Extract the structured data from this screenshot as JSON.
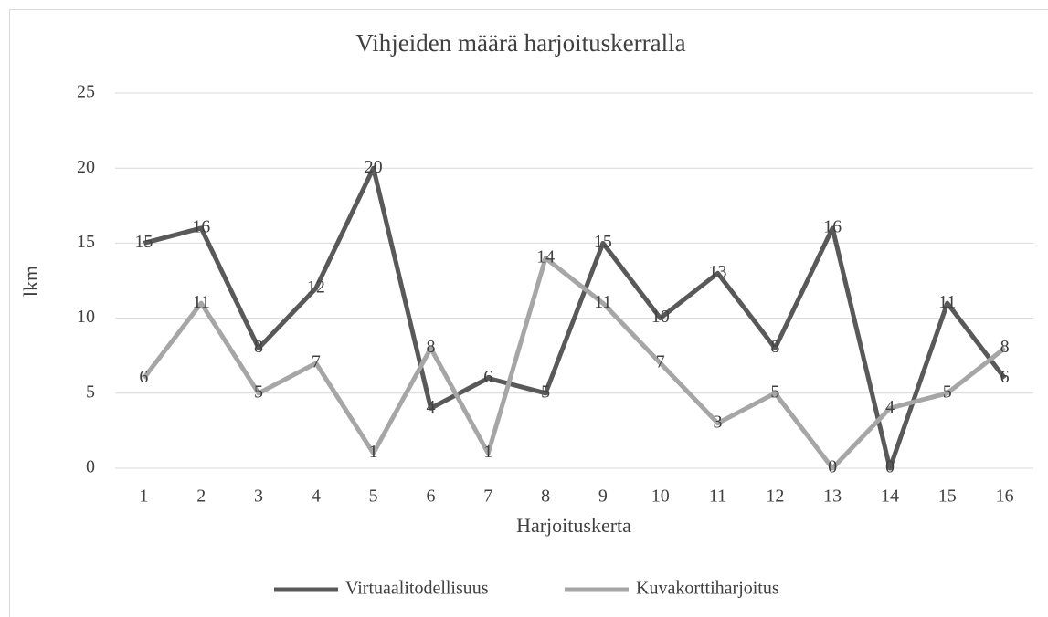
{
  "chart_data": {
    "type": "line",
    "title": "Vihjeiden määrä harjoituskerralla",
    "x_label": "Harjoituskerta",
    "y_label": "lkm",
    "categories": [
      "1",
      "2",
      "3",
      "4",
      "5",
      "6",
      "7",
      "8",
      "9",
      "10",
      "11",
      "12",
      "13",
      "14",
      "15",
      "16"
    ],
    "series": [
      {
        "name": "Virtuaalitodellisuus",
        "color": "#595959",
        "values": [
          15,
          16,
          8,
          12,
          20,
          4,
          6,
          5,
          15,
          10,
          13,
          8,
          16,
          0,
          11,
          6
        ]
      },
      {
        "name": "Kuvakorttiharjoitus",
        "color": "#a6a6a6",
        "values": [
          6,
          11,
          5,
          7,
          1,
          8,
          1,
          14,
          11,
          7,
          3,
          5,
          0,
          4,
          5,
          8
        ]
      }
    ],
    "ylim": [
      0,
      25
    ],
    "yticks": [
      0,
      5,
      10,
      15,
      20,
      25
    ],
    "grid": true,
    "legend": "bottom"
  }
}
